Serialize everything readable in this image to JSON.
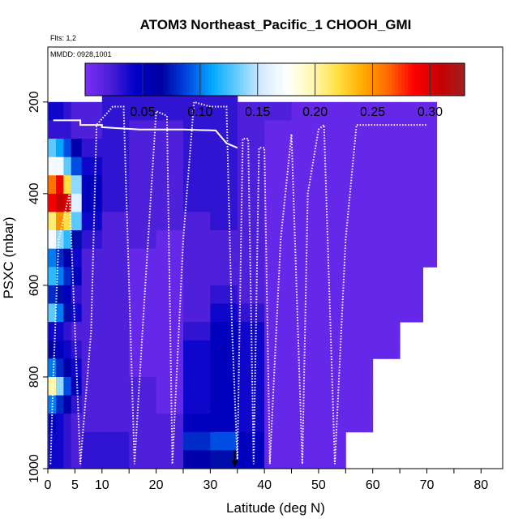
{
  "chart_data": {
    "type": "heatmap",
    "title": "ATOM3 Northeast_Pacific_1 CHOOH_GMI",
    "subtitle_flights": "Flts: 1,2",
    "subtitle_dates": "MMDD: 0928,1001",
    "xlabel": "Latitude (deg N)",
    "ylabel": "PSXC (mbar)",
    "xlim": [
      0,
      84
    ],
    "ylim": [
      1000,
      80
    ],
    "y_reversed": true,
    "x_ticks": [
      0,
      5,
      10,
      20,
      30,
      40,
      50,
      60,
      70,
      80
    ],
    "y_ticks": [
      200,
      400,
      600,
      800,
      1000
    ],
    "colorbar": {
      "range": [
        0,
        0.33
      ],
      "ticks": [
        0.05,
        0.1,
        0.15,
        0.2,
        0.25,
        0.3
      ],
      "tick_labels": [
        "0.05",
        "0.10",
        "0.15",
        "0.20",
        "0.25",
        "0.30"
      ],
      "colors": [
        "#7b2ff7",
        "#4b1fd6",
        "#0000c8",
        "#0000a0",
        "#0044e0",
        "#00a8ff",
        "#66ccff",
        "#d6ecff",
        "#ffffff",
        "#fff8b0",
        "#ffe040",
        "#ffaa00",
        "#ff6600",
        "#ff0000",
        "#c80000",
        "#a02020"
      ]
    },
    "pressure_levels": [
      180,
      220,
      260,
      300,
      340,
      380,
      420,
      460,
      500,
      540,
      580,
      620,
      660,
      700,
      740,
      780,
      820,
      860,
      900,
      940,
      980
    ],
    "columns": [
      {
        "x": 0.8,
        "v": [
          null,
          0.04,
          0.03,
          0.13,
          0.17,
          0.26,
          0.29,
          0.21,
          0.17,
          0.1,
          0.12,
          0.08,
          0.13,
          0.04,
          0.06,
          0.1,
          0.2,
          0.1,
          0.05,
          0.04,
          0.04
        ]
      },
      {
        "x": 2.2,
        "v": [
          null,
          0.04,
          0.03,
          0.11,
          0.17,
          0.29,
          0.31,
          0.25,
          0.14,
          0.08,
          0.1,
          0.07,
          0.1,
          0.04,
          0.05,
          0.08,
          0.14,
          0.08,
          0.04,
          0.04,
          0.04
        ]
      },
      {
        "x": 3.6,
        "v": [
          null,
          0.03,
          0.03,
          0.09,
          0.13,
          0.22,
          0.3,
          0.22,
          0.12,
          0.06,
          0.08,
          0.05,
          0.07,
          0.03,
          0.04,
          0.06,
          0.09,
          0.06,
          0.03,
          0.03,
          0.03
        ]
      },
      {
        "x": 5.0,
        "v": [
          null,
          0.02,
          0.02,
          0.06,
          0.09,
          0.14,
          0.16,
          0.13,
          0.07,
          0.04,
          0.05,
          0.03,
          0.04,
          0.02,
          0.03,
          0.04,
          0.05,
          0.03,
          0.02,
          0.02,
          0.02
        ]
      },
      {
        "x": 7.5,
        "v": [
          null,
          0.02,
          0.02,
          0.03,
          0.04,
          0.05,
          0.05,
          0.04,
          0.03,
          0.02,
          0.02,
          0.02,
          0.02,
          0.02,
          0.02,
          0.02,
          0.02,
          0.02,
          0.02,
          0.03,
          0.03
        ]
      },
      {
        "x": 12.5,
        "v": [
          0.03,
          0.03,
          0.03,
          0.03,
          0.03,
          0.03,
          0.03,
          0.02,
          0.02,
          0.02,
          0.02,
          0.02,
          0.02,
          0.02,
          0.02,
          0.02,
          0.02,
          0.02,
          0.02,
          0.03,
          0.03
        ]
      },
      {
        "x": 17.5,
        "v": [
          0.03,
          0.03,
          0.02,
          0.02,
          0.02,
          0.02,
          0.02,
          0.02,
          0.02,
          0.01,
          0.01,
          0.01,
          0.01,
          0.01,
          0.01,
          0.01,
          0.02,
          0.02,
          0.02,
          0.02,
          0.02
        ]
      },
      {
        "x": 22.5,
        "v": [
          0.03,
          0.03,
          0.02,
          0.02,
          0.02,
          0.02,
          0.02,
          0.02,
          0.01,
          0.01,
          0.01,
          0.01,
          0.01,
          0.01,
          0.01,
          0.01,
          0.01,
          0.01,
          0.02,
          0.02,
          0.02
        ]
      },
      {
        "x": 27.5,
        "v": [
          0.03,
          0.03,
          0.03,
          0.03,
          0.03,
          0.03,
          0.03,
          0.02,
          0.02,
          0.02,
          0.02,
          0.02,
          0.02,
          0.03,
          0.04,
          0.04,
          0.04,
          0.04,
          0.05,
          0.08,
          0.06
        ]
      },
      {
        "x": 32.5,
        "v": [
          0.03,
          0.03,
          0.03,
          0.03,
          0.03,
          0.03,
          0.03,
          0.03,
          0.02,
          0.02,
          0.02,
          0.03,
          0.04,
          0.05,
          0.05,
          0.05,
          0.05,
          0.05,
          0.05,
          0.09,
          0.07
        ]
      },
      {
        "x": 37.5,
        "v": [
          null,
          0.02,
          0.02,
          0.02,
          0.02,
          0.02,
          0.02,
          0.02,
          0.02,
          0.02,
          0.02,
          0.02,
          0.03,
          0.04,
          0.04,
          0.04,
          0.04,
          0.04,
          0.04,
          0.05,
          0.05
        ]
      },
      {
        "x": 42.5,
        "v": [
          null,
          0.02,
          0.01,
          0.01,
          0.01,
          0.01,
          0.01,
          0.01,
          0.01,
          0.01,
          0.01,
          0.01,
          0.01,
          0.01,
          0.01,
          0.01,
          0.01,
          0.01,
          0.01,
          0.01,
          0.01
        ]
      },
      {
        "x": 47.5,
        "v": [
          null,
          0.01,
          0.01,
          0.01,
          0.01,
          0.01,
          0.01,
          0.01,
          0.01,
          0.01,
          0.01,
          0.01,
          0.01,
          0.01,
          0.01,
          0.01,
          0.01,
          0.01,
          0.01,
          0.01,
          0.01
        ]
      },
      {
        "x": 52.5,
        "v": [
          null,
          0.01,
          0.01,
          0.01,
          0.01,
          0.01,
          0.01,
          0.01,
          0.01,
          0.01,
          0.01,
          0.01,
          0.01,
          0.01,
          0.01,
          0.01,
          0.01,
          0.01,
          0.01,
          0.01,
          0.01
        ]
      },
      {
        "x": 57.5,
        "v": [
          null,
          0.01,
          0.01,
          0.01,
          0.01,
          0.01,
          0.01,
          0.01,
          0.01,
          0.01,
          0.01,
          0.01,
          0.01,
          0.01,
          0.01,
          0.01,
          0.01,
          0.01,
          0.01,
          null,
          null
        ]
      },
      {
        "x": 62.5,
        "v": [
          null,
          0.01,
          0.01,
          0.01,
          0.01,
          0.01,
          0.01,
          0.01,
          0.01,
          0.01,
          0.01,
          0.01,
          0.01,
          0.01,
          0.01,
          null,
          null,
          null,
          null,
          null,
          null
        ]
      },
      {
        "x": 67.5,
        "v": [
          null,
          0.01,
          0.01,
          0.01,
          0.01,
          0.01,
          0.01,
          0.01,
          0.01,
          0.01,
          0.01,
          0.01,
          0.01,
          null,
          null,
          null,
          null,
          null,
          null,
          null,
          null
        ]
      },
      {
        "x": 71.0,
        "v": [
          null,
          0.01,
          0.01,
          0.01,
          0.01,
          0.01,
          0.01,
          0.01,
          0.01,
          0.01,
          null,
          null,
          null,
          null,
          null,
          null,
          null,
          null,
          null,
          null,
          null
        ]
      }
    ],
    "flight_track_solid": [
      [
        1,
        240
      ],
      [
        6,
        240
      ],
      [
        6,
        250
      ],
      [
        6,
        250
      ],
      [
        10,
        250
      ],
      [
        10,
        255
      ],
      [
        17,
        260
      ],
      [
        25,
        260
      ],
      [
        31,
        262
      ],
      [
        33,
        290
      ],
      [
        35,
        300
      ]
    ],
    "flight_track_dotted": [
      [
        0.5,
        990
      ],
      [
        1,
        800
      ],
      [
        2,
        500
      ],
      [
        4,
        400
      ],
      [
        6,
        990
      ],
      [
        8,
        700
      ],
      [
        9,
        250
      ],
      [
        12,
        210
      ],
      [
        14,
        210
      ],
      [
        16,
        990
      ],
      [
        18,
        600
      ],
      [
        20,
        220
      ],
      [
        22,
        230
      ],
      [
        23,
        990
      ],
      [
        25,
        500
      ],
      [
        27,
        200
      ],
      [
        30,
        210
      ],
      [
        33,
        210
      ],
      [
        34,
        690
      ],
      [
        35,
        980
      ],
      [
        36,
        280
      ],
      [
        37,
        280
      ],
      [
        38,
        990
      ],
      [
        39,
        300
      ],
      [
        40,
        300
      ],
      [
        41,
        990
      ],
      [
        43,
        500
      ],
      [
        45,
        270
      ],
      [
        47,
        990
      ],
      [
        48,
        400
      ],
      [
        50,
        260
      ],
      [
        51,
        250
      ],
      [
        53,
        990
      ],
      [
        55,
        500
      ],
      [
        57,
        250
      ],
      [
        70,
        250
      ]
    ],
    "arrow_x": 34.5
  }
}
